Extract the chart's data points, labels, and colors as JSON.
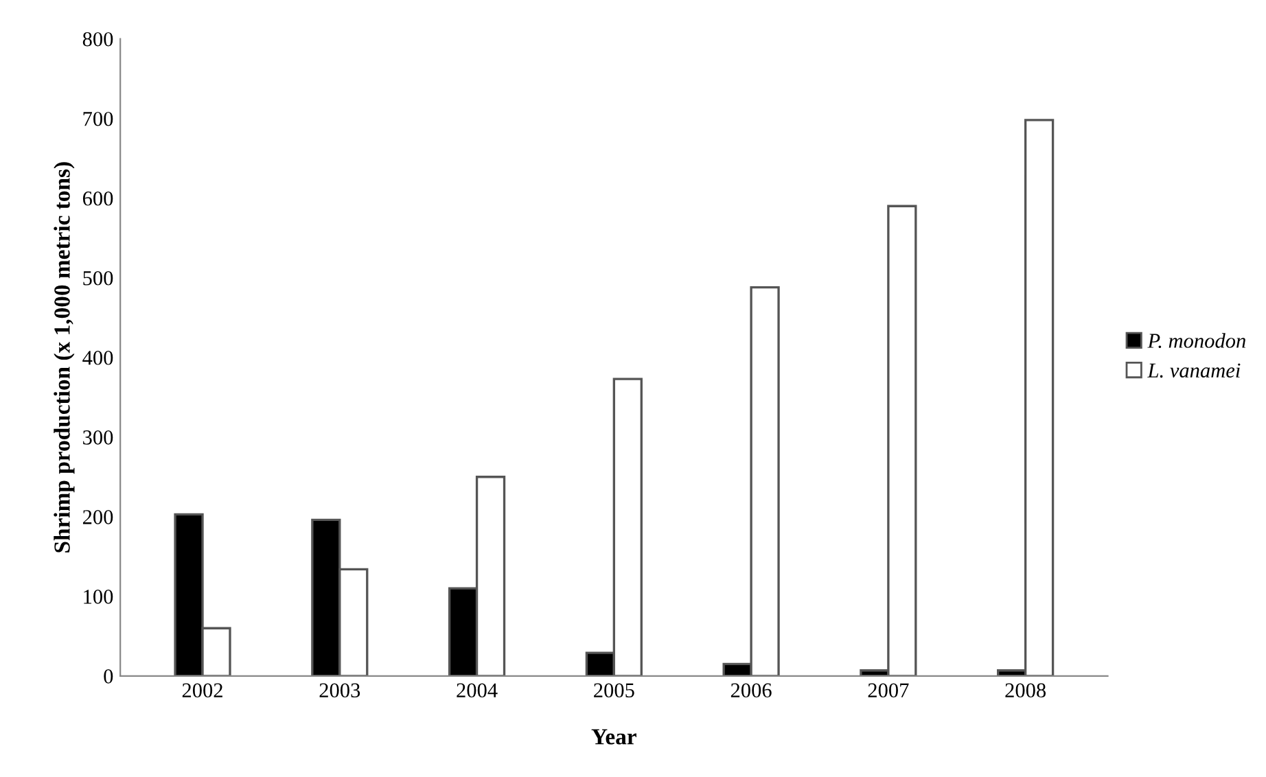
{
  "chart_data": {
    "type": "bar",
    "xlabel": "Year",
    "ylabel": "Shrimp production (x 1,000 metric tons)",
    "categories": [
      "2002",
      "2003",
      "2004",
      "2005",
      "2006",
      "2007",
      "2008"
    ],
    "series": [
      {
        "name": "P. monodon",
        "color": "#000000",
        "values": [
          203,
          196,
          110,
          29,
          15,
          7,
          7
        ]
      },
      {
        "name": "L. vanamei",
        "color": "#ffffff",
        "values": [
          60,
          134,
          250,
          373,
          488,
          590,
          698
        ]
      }
    ],
    "ylim": [
      0,
      800
    ],
    "yticks": [
      0,
      100,
      200,
      300,
      400,
      500,
      600,
      700,
      800
    ],
    "grid": false,
    "legend": "right"
  }
}
